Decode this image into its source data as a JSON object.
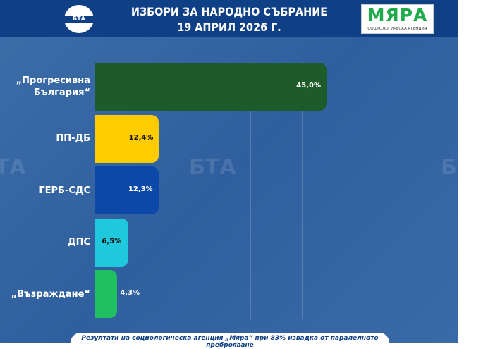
{
  "header": {
    "title_line1": "ИЗБОРИ ЗА НАРОДНО СЪБРАНИЕ",
    "title_line2": "19 АПРИЛ 2026 Г.",
    "bta_logo": "БТА",
    "agency_logo": "МЯРА",
    "agency_tagline": "СОЦИОЛОГИЧЕСКА АГЕНЦИЯ"
  },
  "watermark": "БТА",
  "chart_data": {
    "type": "bar",
    "orientation": "horizontal",
    "categories": [
      "„Прогресивна\nБългария“",
      "ПП-ДБ",
      "ГЕРБ-СДС",
      "ДПС",
      "„Възраждане“"
    ],
    "values": [
      45.0,
      12.4,
      12.3,
      6.5,
      4.3
    ],
    "labels": [
      "45,0%",
      "12,4%",
      "12,3%",
      "6,5%",
      "4,3%"
    ],
    "colors": [
      "#1e5b2b",
      "#ffcc00",
      "#0b48a8",
      "#1fc8dd",
      "#20bf60"
    ],
    "unit": "%",
    "xlim": [
      0,
      45
    ],
    "grid": true
  },
  "footer": "Резултати на социологическа агенция „Мяра“ при 83% извадка от паралелното преброяване"
}
